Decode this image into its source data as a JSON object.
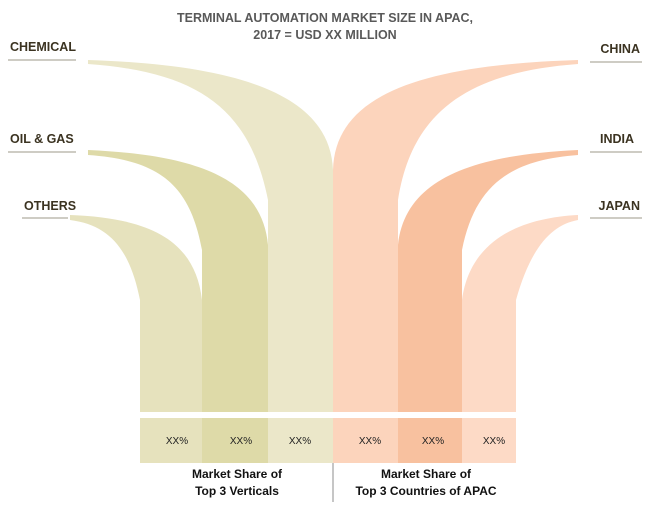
{
  "chart_data": {
    "type": "bar",
    "title": "TERMINAL AUTOMATION MARKET SIZE IN APAC,",
    "subtitle": "2017 = USD XX MILLION",
    "groups": [
      {
        "caption_line1": "Market Share of",
        "caption_line2": "Top 3 Verticals",
        "categories": [
          "CHEMICAL",
          "OIL & GAS",
          "OTHERS"
        ],
        "values": [
          "XX%",
          "XX%",
          "XX%"
        ],
        "colors": [
          "#e6e2bd",
          "#dedaa8",
          "#ebe7c9"
        ]
      },
      {
        "caption_line1": "Market Share of",
        "caption_line2": "Top 3 Countries of APAC",
        "categories": [
          "CHINA",
          "INDIA",
          "JAPAN"
        ],
        "values": [
          "XX%",
          "XX%",
          "XX%"
        ],
        "colors": [
          "#fcd4bc",
          "#f8c19f",
          "#fddac6"
        ]
      }
    ]
  }
}
